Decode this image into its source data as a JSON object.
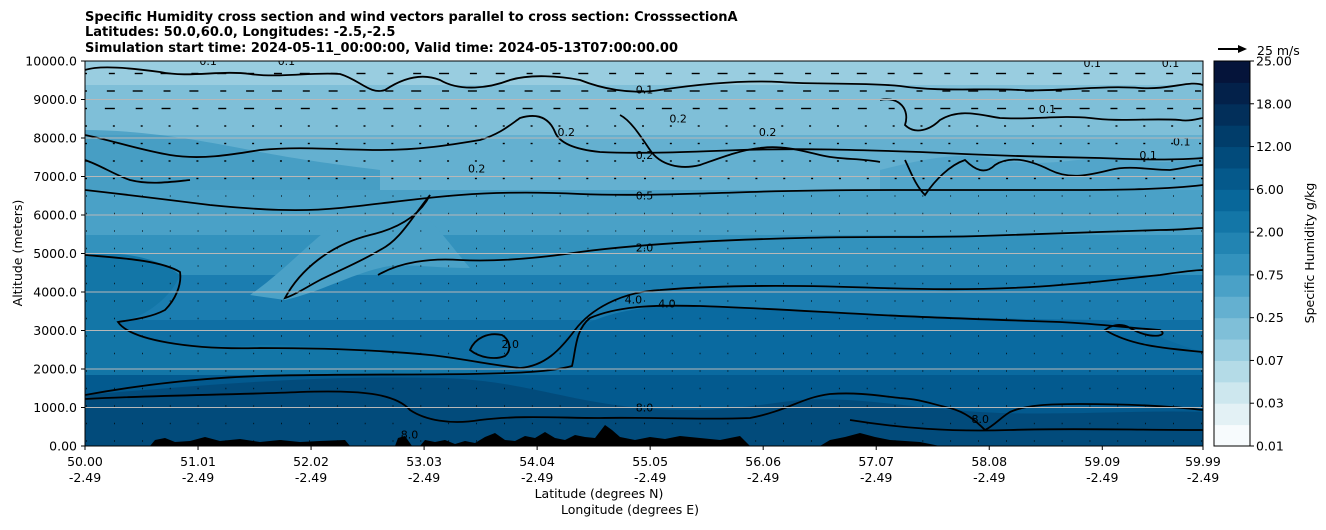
{
  "chart_data": {
    "type": "contour",
    "title_lines": [
      "Specific Humidity cross section and wind vectors parallel to cross section: CrosssectionA",
      "Latitudes: 50.0,60.0, Longitudes: -2.5,-2.5",
      "Simulation start time: 2024-05-11_00:00:00, Valid time: 2024-05-13T07:00:00.00"
    ],
    "ylabel": "Altitude (meters)",
    "xlabel_lat": "Latitude (degrees N)",
    "xlabel_lon": "Longitude (degrees E)",
    "ylim": [
      0,
      10000
    ],
    "y_ticks": [
      "0.00",
      "1000.0",
      "2000.0",
      "3000.0",
      "4000.0",
      "5000.0",
      "6000.0",
      "7000.0",
      "8000.0",
      "9000.0",
      "10000.0"
    ],
    "x_ticks": [
      {
        "lat": "50.00",
        "lon": "-2.49"
      },
      {
        "lat": "51.01",
        "lon": "-2.49"
      },
      {
        "lat": "52.02",
        "lon": "-2.49"
      },
      {
        "lat": "53.03",
        "lon": "-2.49"
      },
      {
        "lat": "54.04",
        "lon": "-2.49"
      },
      {
        "lat": "55.05",
        "lon": "-2.49"
      },
      {
        "lat": "56.06",
        "lon": "-2.49"
      },
      {
        "lat": "57.07",
        "lon": "-2.49"
      },
      {
        "lat": "58.08",
        "lon": "-2.49"
      },
      {
        "lat": "59.09",
        "lon": "-2.49"
      },
      {
        "lat": "59.99",
        "lon": "-2.49"
      }
    ],
    "colorbar": {
      "label": "Specific Humidity g/kg",
      "tick_labels": [
        "0.01",
        "0.03",
        "0.07",
        "0.25",
        "0.75",
        "2.00",
        "6.00",
        "12.00",
        "18.00",
        "25.00"
      ],
      "extra_tick_labels": [
        "0.25",
        "0.75",
        "2.00",
        "6.00",
        "12.00"
      ],
      "colors": [
        "#f7fbfd",
        "#e3f1f5",
        "#cde7ee",
        "#b4dbe7",
        "#99cde0",
        "#7fbfd8",
        "#64b0d0",
        "#4aa1c7",
        "#3392bd",
        "#2284b2",
        "#1376a7",
        "#08679a",
        "#05598b",
        "#024b7b",
        "#013d6a",
        "#022f5a",
        "#03214a",
        "#05143a"
      ]
    },
    "wind_key_label": "25 m/s",
    "contour_labels": [
      {
        "text": "0.1",
        "lat": 51.1,
        "alt": 9900
      },
      {
        "text": "0.1",
        "lat": 51.8,
        "alt": 9900
      },
      {
        "text": "0.1",
        "lat": 55.0,
        "alt": 9150
      },
      {
        "text": "0.2",
        "lat": 55.3,
        "alt": 8400
      },
      {
        "text": "0.2",
        "lat": 56.1,
        "alt": 8050
      },
      {
        "text": "0.2",
        "lat": 54.3,
        "alt": 8050
      },
      {
        "text": "0.2",
        "lat": 53.5,
        "alt": 7100
      },
      {
        "text": "0.1",
        "lat": 58.6,
        "alt": 8650
      },
      {
        "text": "0.1",
        "lat": 59.5,
        "alt": 7450
      },
      {
        "text": "0.1",
        "lat": 59.8,
        "alt": 7800
      },
      {
        "text": "0.1",
        "lat": 59.0,
        "alt": 9850
      },
      {
        "text": "0.1",
        "lat": 59.7,
        "alt": 9850
      },
      {
        "text": "0.2",
        "lat": 55.0,
        "alt": 7450
      },
      {
        "text": "0.5",
        "lat": 55.0,
        "alt": 6400
      },
      {
        "text": "2.0",
        "lat": 55.0,
        "alt": 5050
      },
      {
        "text": "4.0",
        "lat": 54.9,
        "alt": 3700
      },
      {
        "text": "4.0",
        "lat": 55.2,
        "alt": 3600
      },
      {
        "text": "2.0",
        "lat": 53.8,
        "alt": 2550
      },
      {
        "text": "8.0",
        "lat": 55.0,
        "alt": 900
      },
      {
        "text": "8.0",
        "lat": 58.0,
        "alt": 600
      },
      {
        "text": "8.0",
        "lat": 52.9,
        "alt": 200
      }
    ]
  }
}
